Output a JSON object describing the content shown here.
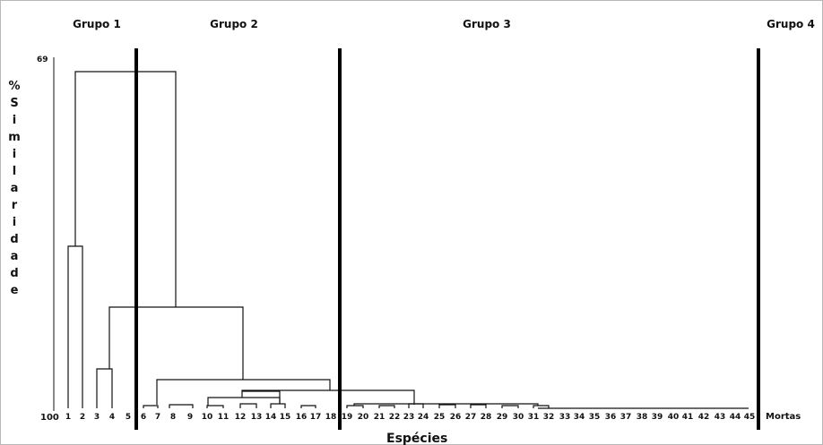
{
  "chart_data": {
    "type": "dendrogram",
    "title": "",
    "xlabel": "Espécies",
    "ylabel": "% Similaridade",
    "y_axis": {
      "top_label": "69",
      "bottom_label": "100",
      "range": [
        69,
        100
      ]
    },
    "leaves": [
      "1",
      "2",
      "3",
      "4",
      "5",
      "6",
      "7",
      "8",
      "9",
      "10",
      "11",
      "12",
      "13",
      "14",
      "15",
      "16",
      "17",
      "18",
      "19",
      "20",
      "21",
      "22",
      "23",
      "24",
      "25",
      "26",
      "27",
      "28",
      "29",
      "30",
      "31",
      "32",
      "33",
      "34",
      "35",
      "36",
      "37",
      "38",
      "39",
      "40",
      "41",
      "42",
      "43",
      "44",
      "45",
      "Mortas"
    ],
    "groups": [
      {
        "name": "Grupo 1",
        "range": [
          "1",
          "5"
        ]
      },
      {
        "name": "Grupo 2",
        "range": [
          "6",
          "18"
        ]
      },
      {
        "name": "Grupo 3",
        "range": [
          "19",
          "45"
        ]
      },
      {
        "name": "Grupo 4",
        "range": [
          "Mortas",
          "Mortas"
        ]
      }
    ],
    "group_separators_after": [
      "5",
      "18",
      "45"
    ]
  }
}
